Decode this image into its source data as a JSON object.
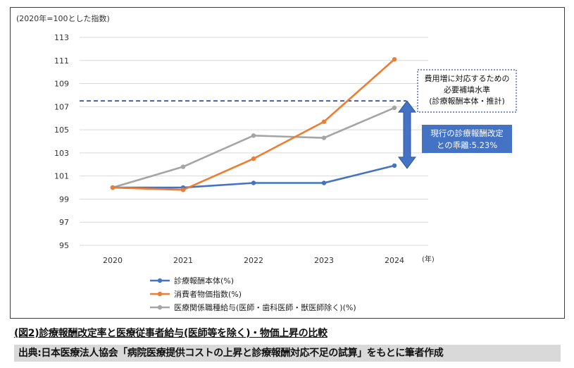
{
  "chart_data": {
    "type": "line",
    "unit_label": "(2020年=100とした指数)",
    "x_unit": "(年)",
    "categories": [
      "2020",
      "2021",
      "2022",
      "2023",
      "2024"
    ],
    "y_ticks": [
      "113",
      "111",
      "109",
      "107",
      "105",
      "103",
      "101",
      "99",
      "97",
      "95"
    ],
    "ylim": [
      95,
      113
    ],
    "grid": "horizontal",
    "legend_position": "bottom-left",
    "series": [
      {
        "name": "診療報酬本体(%)",
        "color": "#4472c4",
        "values": [
          100,
          100,
          100.4,
          100.4,
          101.9
        ]
      },
      {
        "name": "消費者物価指数(%)",
        "color": "#ed7d31",
        "values": [
          100,
          99.8,
          102.5,
          105.7,
          111.1
        ]
      },
      {
        "name": "医療関係職種給与(医師・歯科医師・獣医師除く)(%)",
        "color": "#a5a5a5",
        "values": [
          100,
          101.8,
          104.5,
          104.3,
          106.9
        ]
      }
    ],
    "reference_line": {
      "value": 107.5,
      "color": "#2f4fa8"
    },
    "annotations": {
      "required_level_lines": [
        "費用増に対応するための",
        "必要補填水準",
        "(診療報酬本体・推計)"
      ],
      "gap_lines": [
        "現行の診療報酬改定",
        "との乖離:5.23%"
      ]
    },
    "colors": {
      "gap_box": "#4472c4",
      "arrow": "#4472c4",
      "dotted_box": "#2f4fa8"
    }
  },
  "caption": {
    "title": "(図2)診療報酬改定率と医療従事者給与(医師等を除く)・物価上昇の比較",
    "source": "出典:日本医療法人協会「病院医療提供コストの上昇と診療報酬対応不足の試算」をもとに筆者作成"
  }
}
